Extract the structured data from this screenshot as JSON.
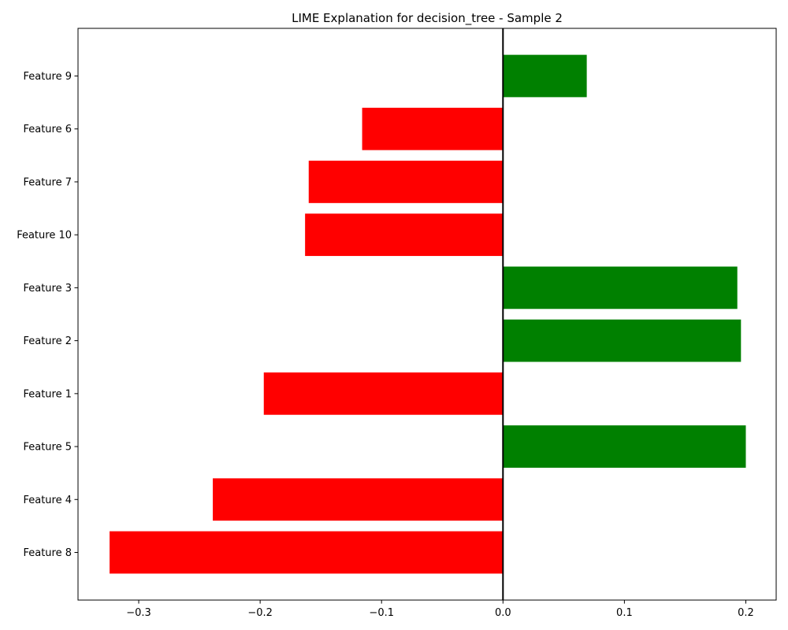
{
  "chart_data": {
    "type": "bar",
    "orientation": "horizontal",
    "title": "LIME Explanation for decision_tree - Sample 2",
    "xlabel": "",
    "ylabel": "",
    "categories": [
      "Feature 8",
      "Feature 4",
      "Feature 5",
      "Feature 1",
      "Feature 2",
      "Feature 3",
      "Feature 10",
      "Feature 7",
      "Feature 6",
      "Feature 9"
    ],
    "values": [
      -0.324,
      -0.239,
      0.2,
      -0.197,
      0.196,
      0.193,
      -0.163,
      -0.16,
      -0.116,
      0.069
    ],
    "xlim": [
      -0.35,
      0.225
    ],
    "xticks": [
      -0.3,
      -0.2,
      -0.1,
      0.0,
      0.1,
      0.2
    ],
    "xtick_labels": [
      "−0.3",
      "−0.2",
      "−0.1",
      "0.0",
      "0.1",
      "0.2"
    ],
    "grid": false,
    "legend": "none",
    "colors": {
      "positive": "#008000",
      "negative": "#ff0000",
      "zero_line": "#000000"
    }
  }
}
